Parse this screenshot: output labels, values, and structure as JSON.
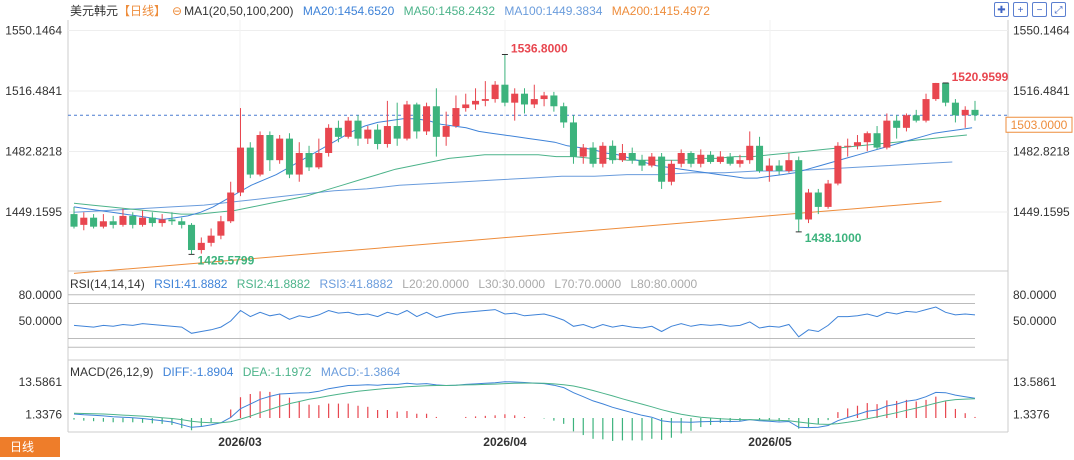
{
  "header": {
    "symbol": "美元韩元",
    "period": "【日线】",
    "ma_label": "MA1(20,50,100,200)",
    "ma20": "MA20:1454.6520",
    "ma50": "MA50:1458.2432",
    "ma100": "MA100:1449.3834",
    "ma200": "MA200:1415.4972"
  },
  "rsi_header": {
    "label": "RSI(14,14,14)",
    "rsi1": "RSI1:41.8882",
    "rsi2": "RSI2:41.8882",
    "rsi3": "RSI3:41.8882",
    "l20": "L20:20.0000",
    "l30": "L30:30.0000",
    "l70": "L70:70.0000",
    "l80": "L80:80.0000"
  },
  "macd_header": {
    "label": "MACD(26,12,9)",
    "diff": "DIFF:-1.8904",
    "dea": "DEA:-1.1972",
    "macd": "MACD:-1.3864"
  },
  "bottom_tab": "日线",
  "colors": {
    "up": "#e8464f",
    "down": "#3cb37d",
    "ma20": "#3f83d8",
    "ma50": "#4cb38a",
    "ma100": "#3f83d8",
    "ma200": "#ee8d3c",
    "current": "#ee8d3c"
  },
  "chart_data": {
    "type": "candlestick",
    "price_axis_ticks": [
      "1550.1464",
      "1516.4841",
      "1482.8218",
      "1449.1595"
    ],
    "price_axis_values": [
      1550.1464,
      1516.4841,
      1482.8218,
      1449.1595
    ],
    "x_labels": [
      "2026/03",
      "2026/04",
      "2026/05"
    ],
    "current_price": "1503.0000",
    "current_price_value": 1503.0,
    "annotations": [
      {
        "text": "1536.8000",
        "value": 1536.8,
        "kind": "high"
      },
      {
        "text": "1425.5799",
        "value": 1425.58,
        "kind": "low"
      },
      {
        "text": "1520.9599",
        "value": 1520.96,
        "kind": "high"
      },
      {
        "text": "1438.1000",
        "value": 1438.1,
        "kind": "low"
      }
    ],
    "candles": [
      [
        1448,
        1441,
        1452,
        1440
      ],
      [
        1442,
        1446,
        1449,
        1439
      ],
      [
        1446,
        1441,
        1448,
        1440
      ],
      [
        1441,
        1444,
        1448,
        1440
      ],
      [
        1444,
        1442,
        1447,
        1440
      ],
      [
        1442,
        1447,
        1451,
        1441
      ],
      [
        1447,
        1442,
        1449,
        1440
      ],
      [
        1442,
        1446,
        1450,
        1441
      ],
      [
        1446,
        1443,
        1449,
        1441
      ],
      [
        1443,
        1445,
        1448,
        1441
      ],
      [
        1445,
        1444,
        1449,
        1442
      ],
      [
        1444,
        1442,
        1446,
        1440
      ],
      [
        1442,
        1428,
        1443,
        1425.58
      ],
      [
        1428,
        1432,
        1435,
        1426
      ],
      [
        1432,
        1436,
        1440,
        1430
      ],
      [
        1436,
        1444,
        1447,
        1434
      ],
      [
        1444,
        1460,
        1466,
        1443
      ],
      [
        1460,
        1485,
        1507,
        1458
      ],
      [
        1485,
        1470,
        1488,
        1468
      ],
      [
        1470,
        1492,
        1494,
        1469
      ],
      [
        1492,
        1478,
        1494,
        1472
      ],
      [
        1478,
        1490,
        1492,
        1476
      ],
      [
        1490,
        1470,
        1493,
        1468
      ],
      [
        1470,
        1482,
        1488,
        1466
      ],
      [
        1482,
        1474,
        1486,
        1472
      ],
      [
        1474,
        1482,
        1490,
        1473
      ],
      [
        1482,
        1496,
        1498,
        1480
      ],
      [
        1496,
        1491,
        1500,
        1488
      ],
      [
        1491,
        1500,
        1502,
        1490
      ],
      [
        1500,
        1490,
        1503,
        1486
      ],
      [
        1490,
        1495,
        1497,
        1487
      ],
      [
        1495,
        1487,
        1498,
        1484
      ],
      [
        1487,
        1497,
        1511,
        1485
      ],
      [
        1497,
        1490,
        1510,
        1486
      ],
      [
        1490,
        1509,
        1511,
        1489
      ],
      [
        1509,
        1494,
        1510,
        1490
      ],
      [
        1494,
        1508,
        1510,
        1492
      ],
      [
        1508,
        1491,
        1518,
        1480
      ],
      [
        1491,
        1497,
        1505,
        1486
      ],
      [
        1497,
        1507,
        1514,
        1496
      ],
      [
        1507,
        1509,
        1515,
        1505
      ],
      [
        1509,
        1511,
        1518,
        1506
      ],
      [
        1511,
        1512,
        1522,
        1508
      ],
      [
        1512,
        1520,
        1522,
        1510
      ],
      [
        1520,
        1510,
        1536.8,
        1508
      ],
      [
        1510,
        1515,
        1518,
        1500
      ],
      [
        1515,
        1509,
        1518,
        1504
      ],
      [
        1509,
        1512,
        1520,
        1507
      ],
      [
        1512,
        1514,
        1516,
        1508
      ],
      [
        1514,
        1508,
        1516,
        1505
      ],
      [
        1508,
        1499,
        1510,
        1496
      ],
      [
        1499,
        1480,
        1503,
        1476
      ],
      [
        1480,
        1485,
        1487,
        1476
      ],
      [
        1485,
        1476,
        1488,
        1474
      ],
      [
        1476,
        1486,
        1488,
        1474
      ],
      [
        1486,
        1478,
        1489,
        1476
      ],
      [
        1478,
        1482,
        1487,
        1477
      ],
      [
        1482,
        1478,
        1485,
        1476
      ],
      [
        1478,
        1475,
        1481,
        1472
      ],
      [
        1475,
        1480,
        1482,
        1474
      ],
      [
        1480,
        1466,
        1482,
        1462
      ],
      [
        1466,
        1476,
        1478,
        1464
      ],
      [
        1476,
        1482,
        1484,
        1474
      ],
      [
        1482,
        1476,
        1483,
        1474
      ],
      [
        1476,
        1481,
        1484,
        1474
      ],
      [
        1481,
        1477,
        1483,
        1476
      ],
      [
        1477,
        1480,
        1483,
        1476
      ],
      [
        1480,
        1476,
        1482,
        1475
      ],
      [
        1476,
        1478,
        1481,
        1474
      ],
      [
        1478,
        1486,
        1494,
        1476
      ],
      [
        1486,
        1472,
        1491,
        1471
      ],
      [
        1472,
        1475,
        1479,
        1466
      ],
      [
        1475,
        1472,
        1478,
        1470
      ],
      [
        1472,
        1478,
        1482,
        1471
      ],
      [
        1478,
        1445,
        1480,
        1438.1
      ],
      [
        1445,
        1460,
        1462,
        1443
      ],
      [
        1460,
        1452,
        1462,
        1448
      ],
      [
        1452,
        1465,
        1467,
        1451
      ],
      [
        1465,
        1486,
        1488,
        1464
      ],
      [
        1486,
        1486,
        1490,
        1480
      ],
      [
        1486,
        1488,
        1492,
        1484
      ],
      [
        1488,
        1493,
        1494,
        1483
      ],
      [
        1493,
        1485,
        1497,
        1484
      ],
      [
        1485,
        1500,
        1504,
        1484
      ],
      [
        1500,
        1496,
        1503,
        1490
      ],
      [
        1496,
        1503,
        1504,
        1494
      ],
      [
        1503,
        1500,
        1506,
        1499
      ],
      [
        1500,
        1512,
        1515,
        1499
      ],
      [
        1512,
        1520.96,
        1521,
        1511
      ],
      [
        1520.96,
        1510,
        1521,
        1508
      ],
      [
        1510,
        1503,
        1512,
        1499
      ],
      [
        1503,
        1506,
        1508,
        1496
      ],
      [
        1506,
        1503,
        1511,
        1500
      ]
    ],
    "ma_lines": {
      "ma20": [
        1452,
        1451,
        1450,
        1449,
        1448,
        1447,
        1446,
        1445,
        1446,
        1447,
        1449,
        1452,
        1456,
        1460,
        1464,
        1467,
        1470,
        1474,
        1478,
        1482,
        1486,
        1490,
        1494,
        1497,
        1499,
        1500,
        1501,
        1501,
        1500,
        1498,
        1497,
        1496,
        1494,
        1493,
        1492,
        1491,
        1490,
        1489,
        1488,
        1486,
        1485,
        1484,
        1482,
        1481,
        1479,
        1477,
        1475,
        1474,
        1473,
        1472,
        1471,
        1470,
        1469,
        1468,
        1468,
        1469,
        1470,
        1471,
        1473,
        1475,
        1477,
        1479,
        1481,
        1483,
        1485,
        1487,
        1489,
        1491,
        1493,
        1494,
        1495,
        1496
      ],
      "ma50": [
        1454,
        1453,
        1452,
        1451,
        1450,
        1449,
        1448,
        1448,
        1449,
        1450,
        1452,
        1454,
        1456,
        1458,
        1461,
        1464,
        1467,
        1470,
        1473,
        1475,
        1477,
        1479,
        1480,
        1481,
        1481,
        1481,
        1481,
        1480,
        1480,
        1479,
        1479,
        1478,
        1478,
        1478,
        1478,
        1479,
        1479,
        1480,
        1480,
        1481,
        1482,
        1483,
        1484,
        1485,
        1486,
        1487,
        1488,
        1489,
        1490,
        1491,
        1492
      ],
      "ma100": [
        1449,
        1450,
        1451,
        1452,
        1453,
        1455,
        1457,
        1459,
        1461,
        1462,
        1464,
        1465,
        1466,
        1467,
        1468,
        1469,
        1469,
        1470,
        1470,
        1471,
        1471,
        1472,
        1472,
        1473,
        1474,
        1475,
        1476,
        1477
      ],
      "ma200": [
        1415,
        1417,
        1419,
        1421,
        1423,
        1425,
        1427,
        1429,
        1431,
        1433,
        1435,
        1437,
        1439,
        1441,
        1443,
        1445,
        1447,
        1449,
        1451,
        1453,
        1455
      ]
    },
    "rsi": {
      "ticks": [
        "80.0000",
        "50.0000"
      ],
      "tick_values": [
        80,
        50
      ],
      "levels": [
        20,
        30,
        70,
        80
      ],
      "values": [
        45,
        44,
        43,
        45,
        44,
        46,
        45,
        47,
        46,
        45,
        44,
        43,
        36,
        38,
        40,
        43,
        50,
        62,
        55,
        60,
        56,
        58,
        52,
        56,
        54,
        57,
        62,
        59,
        60,
        57,
        58,
        55,
        60,
        57,
        62,
        55,
        60,
        54,
        57,
        59,
        60,
        61,
        62,
        63,
        58,
        59,
        56,
        57,
        58,
        55,
        51,
        44,
        46,
        42,
        46,
        43,
        45,
        43,
        42,
        44,
        38,
        44,
        47,
        44,
        46,
        45,
        46,
        44,
        45,
        49,
        42,
        44,
        43,
        46,
        32,
        40,
        38,
        45,
        55,
        55,
        56,
        58,
        55,
        60,
        58,
        61,
        60,
        63,
        66,
        60,
        57,
        58,
        57
      ]
    },
    "macd": {
      "ticks": [
        "13.5861",
        "1.3376"
      ],
      "tick_values": [
        13.5861,
        1.3376
      ],
      "diff": [
        1.5,
        1.2,
        1.0,
        0.8,
        0.5,
        0.3,
        0.1,
        -0.2,
        -0.6,
        -1.0,
        -1.5,
        -2.5,
        -3.5,
        -3.2,
        -2.6,
        -1.8,
        0.2,
        3.5,
        5.2,
        7.0,
        8.1,
        9.0,
        9.2,
        9.4,
        9.5,
        10.0,
        11.0,
        11.6,
        12.2,
        12.3,
        12.5,
        12.3,
        12.6,
        12.6,
        13.0,
        12.7,
        12.9,
        12.4,
        12.2,
        12.3,
        12.6,
        12.8,
        13.0,
        13.2,
        13.6,
        13.5,
        13.3,
        13.1,
        12.9,
        12.3,
        11.4,
        9.5,
        8.0,
        6.4,
        5.3,
        4.0,
        3.0,
        2.0,
        1.0,
        0.3,
        -1.0,
        -1.5,
        -1.5,
        -1.6,
        -1.4,
        -1.3,
        -1.2,
        -1.3,
        -1.2,
        -0.6,
        -1.0,
        -1.2,
        -1.5,
        -1.3,
        -3.5,
        -3.6,
        -3.5,
        -2.8,
        -1.0,
        0.2,
        1.3,
        2.5,
        3.0,
        4.5,
        5.2,
        6.3,
        6.8,
        8.0,
        9.6,
        9.5,
        8.6,
        8.0,
        7.4
      ],
      "dea": [
        1.8,
        1.7,
        1.6,
        1.5,
        1.3,
        1.1,
        0.9,
        0.7,
        0.4,
        0.1,
        -0.2,
        -0.6,
        -1.2,
        -1.6,
        -1.8,
        -1.8,
        -1.4,
        -0.4,
        0.7,
        2.0,
        3.2,
        4.4,
        5.4,
        6.2,
        7.0,
        7.6,
        8.3,
        8.9,
        9.5,
        10.0,
        10.4,
        10.8,
        11.1,
        11.4,
        11.7,
        11.9,
        12.1,
        12.2,
        12.2,
        12.3,
        12.4,
        12.5,
        12.6,
        12.7,
        12.9,
        13.0,
        13.1,
        13.1,
        13.0,
        12.8,
        12.5,
        12.0,
        11.2,
        10.3,
        9.3,
        8.3,
        7.2,
        6.2,
        5.2,
        4.2,
        3.1,
        2.2,
        1.4,
        0.8,
        0.3,
        0.0,
        -0.3,
        -0.5,
        -0.6,
        -0.6,
        -0.7,
        -0.8,
        -0.9,
        -1.0,
        -1.5,
        -1.9,
        -2.3,
        -2.4,
        -2.1,
        -1.6,
        -1.0,
        -0.3,
        0.4,
        1.2,
        2.0,
        2.9,
        3.7,
        4.6,
        5.6,
        6.4,
        6.9,
        7.1,
        7.2
      ]
    }
  }
}
